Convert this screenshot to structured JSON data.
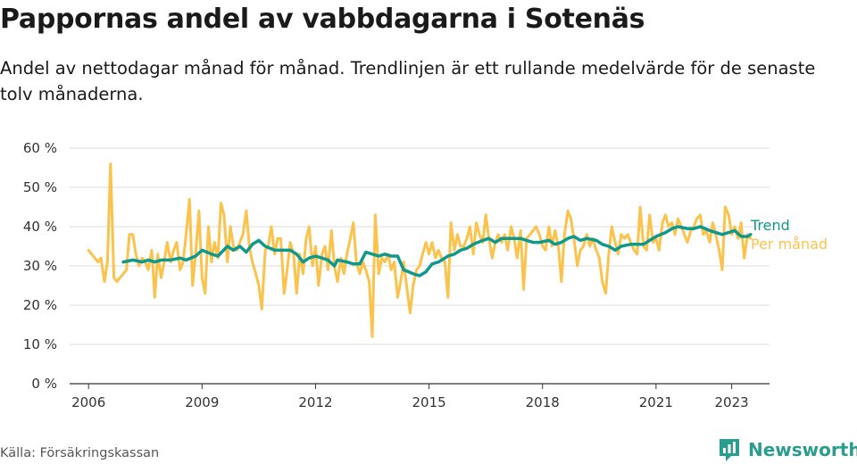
{
  "title": "Pappornas andel av vabbdagarna i Sotenäs",
  "subtitle": "Andel av nettodagar månad för månad. Trendlinjen är ett rullande medelvärde för de senaste tolv månaderna.",
  "source": "Källa: Försäkringskassan",
  "brand": {
    "name": "Newsworthy",
    "icon": "bar-chart-speech-bubble-icon"
  },
  "colors": {
    "trend": "#10998a",
    "monthly": "#fbc24c",
    "grid": "#dcdcdc",
    "axis": "#333333",
    "brand": "#2a9d8f"
  },
  "chart_data": {
    "type": "line",
    "ylim": [
      0,
      60
    ],
    "yticks": [
      0,
      10,
      20,
      30,
      40,
      50,
      60
    ],
    "ytick_labels": [
      "0 %",
      "10 %",
      "20 %",
      "30 %",
      "40 %",
      "50 %",
      "60 %"
    ],
    "xlim": [
      2005.5,
      2024.0
    ],
    "xticks": [
      2006,
      2009,
      2012,
      2015,
      2018,
      2021,
      2023
    ],
    "xtick_labels": [
      "2006",
      "2009",
      "2012",
      "2015",
      "2018",
      "2021",
      "2023"
    ],
    "grid": "horizontal",
    "series": [
      {
        "name": "Per månad",
        "color": "#fbc24c",
        "points": [
          [
            2006.0,
            34
          ],
          [
            2006.25,
            31
          ],
          [
            2006.33,
            32
          ],
          [
            2006.42,
            26
          ],
          [
            2006.5,
            31
          ],
          [
            2006.58,
            56
          ],
          [
            2006.67,
            27
          ],
          [
            2006.75,
            26
          ],
          [
            2006.83,
            27
          ],
          [
            2006.92,
            28
          ],
          [
            2007.0,
            29
          ],
          [
            2007.08,
            38
          ],
          [
            2007.17,
            38
          ],
          [
            2007.25,
            33
          ],
          [
            2007.33,
            30
          ],
          [
            2007.42,
            32
          ],
          [
            2007.5,
            31
          ],
          [
            2007.58,
            29
          ],
          [
            2007.67,
            34
          ],
          [
            2007.75,
            22
          ],
          [
            2007.83,
            33
          ],
          [
            2007.92,
            27
          ],
          [
            2008.0,
            31
          ],
          [
            2008.08,
            36
          ],
          [
            2008.17,
            31
          ],
          [
            2008.25,
            34
          ],
          [
            2008.33,
            36
          ],
          [
            2008.42,
            29
          ],
          [
            2008.5,
            31
          ],
          [
            2008.58,
            38
          ],
          [
            2008.67,
            47
          ],
          [
            2008.75,
            25
          ],
          [
            2008.83,
            33
          ],
          [
            2008.92,
            44
          ],
          [
            2009.0,
            27
          ],
          [
            2009.08,
            23
          ],
          [
            2009.17,
            40
          ],
          [
            2009.25,
            31
          ],
          [
            2009.33,
            36
          ],
          [
            2009.42,
            32
          ],
          [
            2009.5,
            46
          ],
          [
            2009.58,
            43
          ],
          [
            2009.67,
            31
          ],
          [
            2009.75,
            40
          ],
          [
            2009.83,
            35
          ],
          [
            2009.92,
            34
          ],
          [
            2010.0,
            36
          ],
          [
            2010.08,
            38
          ],
          [
            2010.17,
            44
          ],
          [
            2010.25,
            35
          ],
          [
            2010.33,
            31
          ],
          [
            2010.42,
            28
          ],
          [
            2010.5,
            25
          ],
          [
            2010.58,
            19
          ],
          [
            2010.67,
            34
          ],
          [
            2010.75,
            35
          ],
          [
            2010.83,
            40
          ],
          [
            2010.92,
            33
          ],
          [
            2011.0,
            37
          ],
          [
            2011.08,
            37
          ],
          [
            2011.17,
            23
          ],
          [
            2011.25,
            29
          ],
          [
            2011.33,
            36
          ],
          [
            2011.42,
            33
          ],
          [
            2011.5,
            23
          ],
          [
            2011.58,
            33
          ],
          [
            2011.67,
            28
          ],
          [
            2011.75,
            37
          ],
          [
            2011.83,
            40
          ],
          [
            2011.92,
            30
          ],
          [
            2012.0,
            35
          ],
          [
            2012.08,
            25
          ],
          [
            2012.17,
            33
          ],
          [
            2012.25,
            35
          ],
          [
            2012.33,
            29
          ],
          [
            2012.42,
            39
          ],
          [
            2012.5,
            30
          ],
          [
            2012.58,
            26
          ],
          [
            2012.67,
            32
          ],
          [
            2012.75,
            28
          ],
          [
            2012.83,
            33
          ],
          [
            2012.92,
            37
          ],
          [
            2013.0,
            41
          ],
          [
            2013.08,
            31
          ],
          [
            2013.17,
            28
          ],
          [
            2013.25,
            31
          ],
          [
            2013.33,
            29
          ],
          [
            2013.42,
            26
          ],
          [
            2013.5,
            12
          ],
          [
            2013.58,
            43
          ],
          [
            2013.67,
            28
          ],
          [
            2013.75,
            32
          ],
          [
            2013.83,
            31
          ],
          [
            2013.92,
            33
          ],
          [
            2014.0,
            29
          ],
          [
            2014.08,
            31
          ],
          [
            2014.17,
            22
          ],
          [
            2014.25,
            26
          ],
          [
            2014.33,
            31
          ],
          [
            2014.42,
            24
          ],
          [
            2014.5,
            18
          ],
          [
            2014.58,
            25
          ],
          [
            2014.67,
            29
          ],
          [
            2014.75,
            30
          ],
          [
            2014.83,
            33
          ],
          [
            2014.92,
            36
          ],
          [
            2015.0,
            33
          ],
          [
            2015.08,
            36
          ],
          [
            2015.17,
            32
          ],
          [
            2015.25,
            34
          ],
          [
            2015.33,
            32
          ],
          [
            2015.42,
            31
          ],
          [
            2015.5,
            22
          ],
          [
            2015.58,
            41
          ],
          [
            2015.67,
            34
          ],
          [
            2015.75,
            38
          ],
          [
            2015.83,
            35
          ],
          [
            2015.92,
            35
          ],
          [
            2016.0,
            37
          ],
          [
            2016.08,
            40
          ],
          [
            2016.17,
            33
          ],
          [
            2016.25,
            41
          ],
          [
            2016.33,
            38
          ],
          [
            2016.42,
            36
          ],
          [
            2016.5,
            43
          ],
          [
            2016.58,
            37
          ],
          [
            2016.67,
            32
          ],
          [
            2016.75,
            36
          ],
          [
            2016.83,
            38
          ],
          [
            2016.92,
            36
          ],
          [
            2017.0,
            38
          ],
          [
            2017.08,
            34
          ],
          [
            2017.17,
            40
          ],
          [
            2017.25,
            37
          ],
          [
            2017.33,
            32
          ],
          [
            2017.42,
            39
          ],
          [
            2017.5,
            24
          ],
          [
            2017.58,
            37
          ],
          [
            2017.67,
            38
          ],
          [
            2017.75,
            39
          ],
          [
            2017.83,
            40
          ],
          [
            2017.92,
            38
          ],
          [
            2018.0,
            35
          ],
          [
            2018.08,
            34
          ],
          [
            2018.17,
            40
          ],
          [
            2018.25,
            35
          ],
          [
            2018.33,
            39
          ],
          [
            2018.42,
            35
          ],
          [
            2018.5,
            26
          ],
          [
            2018.58,
            38
          ],
          [
            2018.67,
            44
          ],
          [
            2018.75,
            42
          ],
          [
            2018.83,
            37
          ],
          [
            2018.92,
            30
          ],
          [
            2019.0,
            34
          ],
          [
            2019.08,
            35
          ],
          [
            2019.17,
            38
          ],
          [
            2019.25,
            35
          ],
          [
            2019.33,
            37
          ],
          [
            2019.42,
            34
          ],
          [
            2019.5,
            32
          ],
          [
            2019.58,
            26
          ],
          [
            2019.67,
            23
          ],
          [
            2019.75,
            33
          ],
          [
            2019.83,
            40
          ],
          [
            2019.92,
            36
          ],
          [
            2020.0,
            33
          ],
          [
            2020.08,
            38
          ],
          [
            2020.17,
            37
          ],
          [
            2020.25,
            38
          ],
          [
            2020.33,
            36
          ],
          [
            2020.42,
            34
          ],
          [
            2020.5,
            33
          ],
          [
            2020.58,
            45
          ],
          [
            2020.67,
            35
          ],
          [
            2020.75,
            34
          ],
          [
            2020.83,
            43
          ],
          [
            2020.92,
            36
          ],
          [
            2021.0,
            37
          ],
          [
            2021.08,
            34
          ],
          [
            2021.17,
            41
          ],
          [
            2021.25,
            43
          ],
          [
            2021.33,
            40
          ],
          [
            2021.42,
            41
          ],
          [
            2021.5,
            38
          ],
          [
            2021.58,
            42
          ],
          [
            2021.67,
            40
          ],
          [
            2021.75,
            38
          ],
          [
            2021.83,
            36
          ],
          [
            2021.92,
            39
          ],
          [
            2022.0,
            40
          ],
          [
            2022.08,
            42
          ],
          [
            2022.17,
            43
          ],
          [
            2022.25,
            38
          ],
          [
            2022.33,
            39
          ],
          [
            2022.42,
            36
          ],
          [
            2022.5,
            41
          ],
          [
            2022.58,
            38
          ],
          [
            2022.67,
            34
          ],
          [
            2022.75,
            29
          ],
          [
            2022.83,
            45
          ],
          [
            2022.92,
            43
          ],
          [
            2023.0,
            38
          ],
          [
            2023.08,
            40
          ],
          [
            2023.17,
            37
          ],
          [
            2023.25,
            41
          ],
          [
            2023.33,
            32
          ],
          [
            2023.42,
            38
          ],
          [
            2023.5,
            37
          ]
        ]
      },
      {
        "name": "Trend",
        "color": "#10998a",
        "points": [
          [
            2006.92,
            31
          ],
          [
            2007.17,
            31.5
          ],
          [
            2007.42,
            31
          ],
          [
            2007.58,
            31.5
          ],
          [
            2007.75,
            31
          ],
          [
            2007.92,
            31.5
          ],
          [
            2008.17,
            31.5
          ],
          [
            2008.42,
            32
          ],
          [
            2008.58,
            31.5
          ],
          [
            2008.83,
            32.5
          ],
          [
            2009.0,
            34
          ],
          [
            2009.25,
            33
          ],
          [
            2009.42,
            32.5
          ],
          [
            2009.67,
            35
          ],
          [
            2009.83,
            34
          ],
          [
            2010.0,
            35
          ],
          [
            2010.17,
            33.5
          ],
          [
            2010.33,
            35.5
          ],
          [
            2010.5,
            36.5
          ],
          [
            2010.67,
            35
          ],
          [
            2010.92,
            34
          ],
          [
            2011.17,
            34
          ],
          [
            2011.33,
            34
          ],
          [
            2011.5,
            33
          ],
          [
            2011.67,
            31
          ],
          [
            2011.83,
            32
          ],
          [
            2012.0,
            32.5
          ],
          [
            2012.17,
            32
          ],
          [
            2012.33,
            31.5
          ],
          [
            2012.5,
            30
          ],
          [
            2012.58,
            31.5
          ],
          [
            2012.83,
            31
          ],
          [
            2013.0,
            30.5
          ],
          [
            2013.17,
            30.5
          ],
          [
            2013.33,
            33.5
          ],
          [
            2013.5,
            33
          ],
          [
            2013.67,
            32.5
          ],
          [
            2013.83,
            33
          ],
          [
            2014.0,
            32.5
          ],
          [
            2014.17,
            32.5
          ],
          [
            2014.33,
            29
          ],
          [
            2014.58,
            28
          ],
          [
            2014.75,
            27.5
          ],
          [
            2014.92,
            28.5
          ],
          [
            2015.08,
            30.5
          ],
          [
            2015.25,
            31
          ],
          [
            2015.5,
            32.5
          ],
          [
            2015.67,
            33
          ],
          [
            2015.83,
            34
          ],
          [
            2016.0,
            34.5
          ],
          [
            2016.17,
            35.5
          ],
          [
            2016.42,
            36.5
          ],
          [
            2016.58,
            37
          ],
          [
            2016.75,
            36
          ],
          [
            2016.92,
            37
          ],
          [
            2017.17,
            37
          ],
          [
            2017.42,
            37
          ],
          [
            2017.58,
            36.5
          ],
          [
            2017.75,
            36
          ],
          [
            2017.92,
            36
          ],
          [
            2018.17,
            36.5
          ],
          [
            2018.33,
            35.5
          ],
          [
            2018.5,
            36
          ],
          [
            2018.67,
            37
          ],
          [
            2018.83,
            37.5
          ],
          [
            2019.0,
            36.5
          ],
          [
            2019.17,
            37
          ],
          [
            2019.42,
            36.5
          ],
          [
            2019.58,
            35.5
          ],
          [
            2019.75,
            35
          ],
          [
            2019.92,
            34
          ],
          [
            2020.08,
            35
          ],
          [
            2020.33,
            35.5
          ],
          [
            2020.5,
            35.5
          ],
          [
            2020.67,
            35.5
          ],
          [
            2020.83,
            36.5
          ],
          [
            2021.0,
            37.5
          ],
          [
            2021.25,
            38.5
          ],
          [
            2021.42,
            39.5
          ],
          [
            2021.58,
            40
          ],
          [
            2021.83,
            39.5
          ],
          [
            2022.0,
            39.5
          ],
          [
            2022.17,
            40
          ],
          [
            2022.42,
            39
          ],
          [
            2022.58,
            38.5
          ],
          [
            2022.75,
            38
          ],
          [
            2022.92,
            38.5
          ],
          [
            2023.08,
            39
          ],
          [
            2023.25,
            37.5
          ],
          [
            2023.42,
            37.5
          ],
          [
            2023.5,
            38
          ]
        ]
      }
    ]
  }
}
